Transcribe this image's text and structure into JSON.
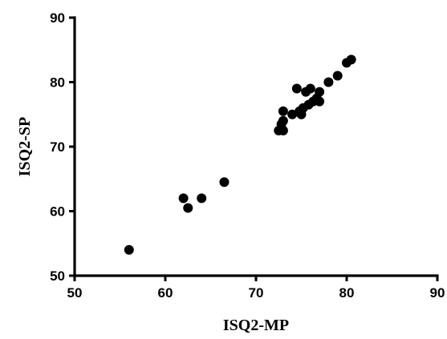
{
  "chart_data": {
    "type": "scatter",
    "xlabel": "ISQ2-MP",
    "ylabel": "ISQ2-SP",
    "xlim": [
      50,
      90
    ],
    "ylim": [
      50,
      90
    ],
    "xticks": [
      50,
      60,
      70,
      80,
      90
    ],
    "yticks": [
      50,
      60,
      70,
      80,
      90
    ],
    "grid": false,
    "marker_color": "#000000",
    "points": [
      {
        "x": 56,
        "y": 54
      },
      {
        "x": 62,
        "y": 62
      },
      {
        "x": 62.5,
        "y": 60.5
      },
      {
        "x": 64,
        "y": 62
      },
      {
        "x": 66.5,
        "y": 64.5
      },
      {
        "x": 72.5,
        "y": 72.5
      },
      {
        "x": 72.8,
        "y": 73.5
      },
      {
        "x": 73,
        "y": 72.5
      },
      {
        "x": 73,
        "y": 74
      },
      {
        "x": 73,
        "y": 75.5
      },
      {
        "x": 74,
        "y": 75
      },
      {
        "x": 74.5,
        "y": 79
      },
      {
        "x": 74.8,
        "y": 75.5
      },
      {
        "x": 75,
        "y": 75
      },
      {
        "x": 75.2,
        "y": 76
      },
      {
        "x": 75.5,
        "y": 78.5
      },
      {
        "x": 75.8,
        "y": 76.5
      },
      {
        "x": 76,
        "y": 79
      },
      {
        "x": 76.3,
        "y": 77
      },
      {
        "x": 76.7,
        "y": 77.5
      },
      {
        "x": 77,
        "y": 78.5
      },
      {
        "x": 77,
        "y": 77
      },
      {
        "x": 78,
        "y": 80
      },
      {
        "x": 79,
        "y": 81
      },
      {
        "x": 80,
        "y": 83
      },
      {
        "x": 80.5,
        "y": 83.5
      }
    ]
  }
}
